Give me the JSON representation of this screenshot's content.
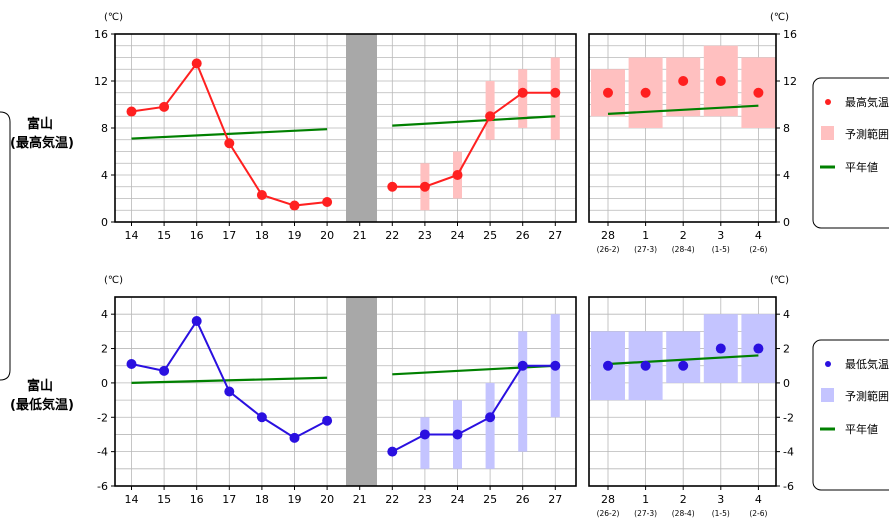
{
  "chart_data": [
    {
      "type": "line",
      "station": "富山",
      "element": "(最高気温)",
      "unit": "(℃)",
      "ylim": [
        0,
        16
      ],
      "yticks": [
        0,
        4,
        8,
        12,
        16
      ],
      "grid": true,
      "x_daily": [
        "14",
        "15",
        "16",
        "17",
        "18",
        "19",
        "20",
        "21",
        "22",
        "23",
        "24",
        "25",
        "26",
        "27"
      ],
      "series": [
        {
          "name": "最高気温",
          "role": "observed",
          "x": [
            "14",
            "15",
            "16",
            "17",
            "18",
            "19",
            "20"
          ],
          "values": [
            9.4,
            9.8,
            13.5,
            6.7,
            2.3,
            1.4,
            1.7
          ],
          "color": "#ff2020"
        },
        {
          "name": "最高気温",
          "role": "forecast",
          "x": [
            "22",
            "23",
            "24",
            "25",
            "26",
            "27"
          ],
          "values": [
            3.0,
            3.0,
            4.0,
            9.0,
            11.0,
            11.0
          ],
          "color": "#ff2020"
        },
        {
          "name": "予測範囲",
          "role": "forecast-range",
          "x": [
            "23",
            "24",
            "25",
            "26",
            "27"
          ],
          "low": [
            1,
            2,
            7,
            8,
            7
          ],
          "high": [
            5,
            6,
            12,
            13,
            14
          ],
          "color": "#ffc0c0"
        },
        {
          "name": "平年値",
          "role": "normal",
          "x": [
            "14",
            "20",
            "22",
            "27"
          ],
          "values": [
            7.1,
            7.9,
            8.2,
            9.0
          ],
          "color": "#008000"
        }
      ],
      "gap_day": "21",
      "weekly": {
        "periods": [
          {
            "label": "28",
            "range": "(26-2)"
          },
          {
            "label": "1",
            "range": "(27-3)"
          },
          {
            "label": "2",
            "range": "(28-4)"
          },
          {
            "label": "3",
            "range": "(1-5)"
          },
          {
            "label": "4",
            "range": "(2-6)"
          }
        ],
        "values": [
          11,
          11,
          12,
          12,
          11
        ],
        "low": [
          9,
          8,
          9,
          9,
          8
        ],
        "high": [
          13,
          14,
          14,
          15,
          14
        ],
        "normal": [
          9.2,
          9.9
        ]
      },
      "legend": {
        "placement": "right",
        "items": [
          "最高気温",
          "予測範囲",
          "平年値"
        ]
      }
    },
    {
      "type": "line",
      "station": "富山",
      "element": "(最低気温)",
      "unit": "(℃)",
      "ylim": [
        -6,
        5
      ],
      "yticks": [
        -6,
        -4,
        -2,
        0,
        2,
        4
      ],
      "grid": true,
      "x_daily": [
        "14",
        "15",
        "16",
        "17",
        "18",
        "19",
        "20",
        "21",
        "22",
        "23",
        "24",
        "25",
        "26",
        "27"
      ],
      "series": [
        {
          "name": "最低気温",
          "role": "observed",
          "x": [
            "14",
            "15",
            "16",
            "17",
            "18",
            "19",
            "20"
          ],
          "values": [
            1.1,
            0.7,
            3.6,
            -0.5,
            -2.0,
            -3.2,
            -2.2
          ],
          "color": "#2a10e0"
        },
        {
          "name": "最低気温",
          "role": "forecast",
          "x": [
            "22",
            "23",
            "24",
            "25",
            "26",
            "27"
          ],
          "values": [
            -4.0,
            -3.0,
            -3.0,
            -2.0,
            1.0,
            1.0
          ],
          "color": "#2a10e0"
        },
        {
          "name": "予測範囲",
          "role": "forecast-range",
          "x": [
            "23",
            "24",
            "25",
            "26",
            "27"
          ],
          "low": [
            -5,
            -5,
            -5,
            -4,
            -2
          ],
          "high": [
            -2,
            -1,
            0,
            3,
            4
          ],
          "color": "#c4c4ff"
        },
        {
          "name": "平年値",
          "role": "normal",
          "x": [
            "14",
            "20",
            "22",
            "27"
          ],
          "values": [
            0.0,
            0.3,
            0.5,
            1.0
          ],
          "color": "#008000"
        }
      ],
      "gap_day": "21",
      "weekly": {
        "periods": [
          {
            "label": "28",
            "range": "(26-2)"
          },
          {
            "label": "1",
            "range": "(27-3)"
          },
          {
            "label": "2",
            "range": "(28-4)"
          },
          {
            "label": "3",
            "range": "(1-5)"
          },
          {
            "label": "4",
            "range": "(2-6)"
          }
        ],
        "values": [
          1,
          1,
          1,
          2,
          2
        ],
        "low": [
          -1,
          -1,
          0,
          0,
          0
        ],
        "high": [
          3,
          3,
          3,
          4,
          4
        ],
        "normal": [
          1.1,
          1.6
        ]
      },
      "legend": {
        "placement": "right",
        "items": [
          "最低気温",
          "予測範囲",
          "平年値"
        ]
      }
    }
  ]
}
